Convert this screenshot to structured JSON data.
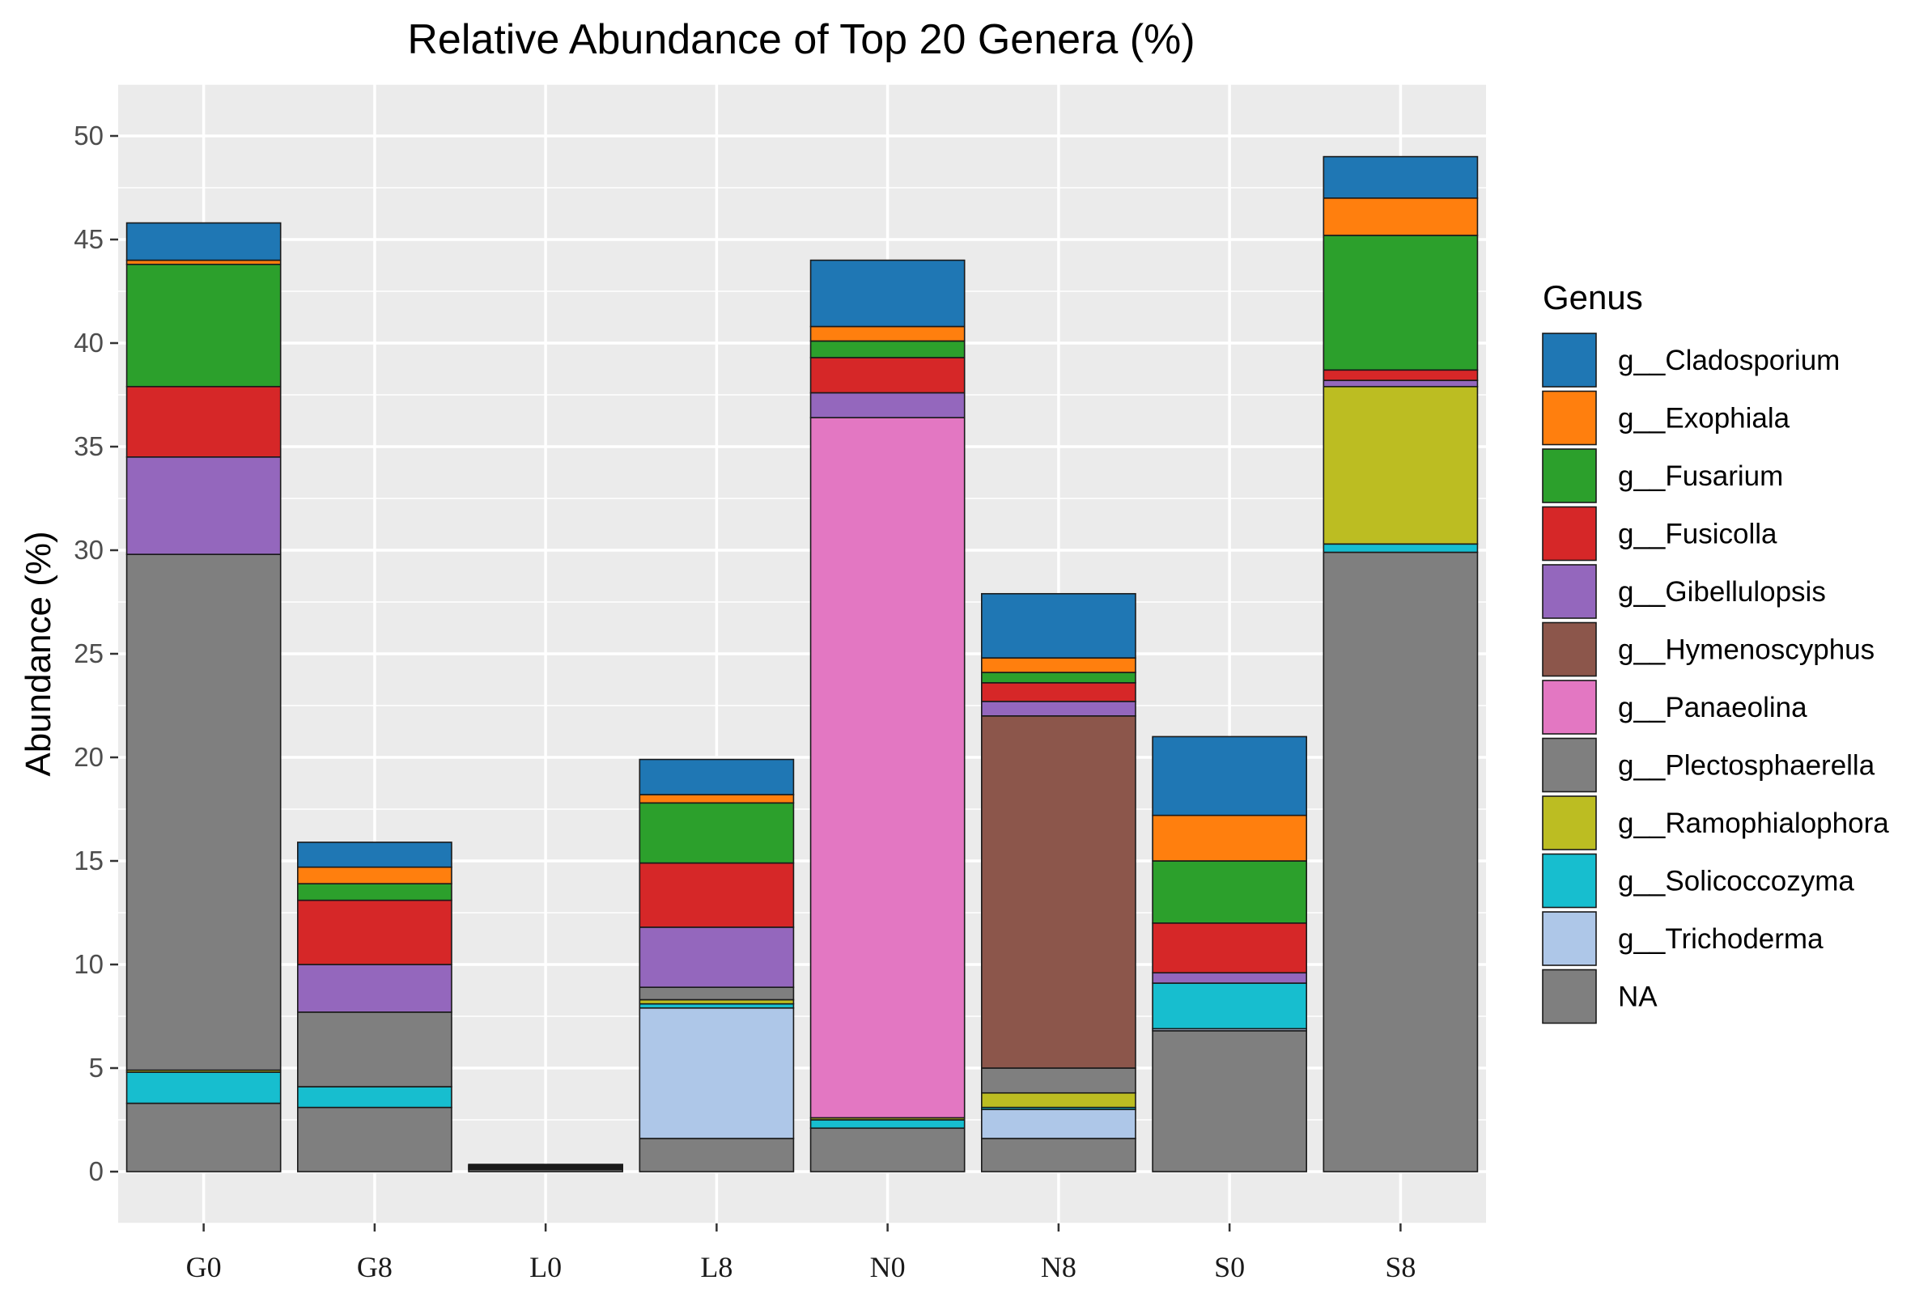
{
  "chart_data": {
    "type": "bar",
    "stacked": true,
    "title": "Relative Abundance of Top 20 Genera (%)",
    "xlabel": "",
    "ylabel": "Abundance (%)",
    "ylim": [
      -2.5,
      52.5
    ],
    "yticks": [
      "0",
      "5",
      "10",
      "15",
      "20",
      "25",
      "30",
      "35",
      "40",
      "45",
      "50"
    ],
    "categories": [
      "G0",
      "G8",
      "L0",
      "L8",
      "N0",
      "N8",
      "S0",
      "S8"
    ],
    "legend_title": "Genus",
    "legend_position": "right",
    "series": [
      {
        "name": "NA",
        "color": "#7F7F7F",
        "values": [
          3.3,
          3.1,
          0.1,
          1.6,
          2.1,
          1.6,
          6.8,
          29.9
        ]
      },
      {
        "name": "g__Trichoderma",
        "color": "#AEC7E8",
        "values": [
          0.0,
          0.0,
          0.0,
          6.3,
          0.0,
          1.4,
          0.1,
          0.0
        ]
      },
      {
        "name": "g__Solicoccozyma",
        "color": "#17BECF",
        "values": [
          1.5,
          1.0,
          0.05,
          0.2,
          0.4,
          0.1,
          2.2,
          0.4
        ]
      },
      {
        "name": "g__Ramophialophora",
        "color": "#BCBD22",
        "values": [
          0.1,
          0.0,
          0.0,
          0.2,
          0.1,
          0.7,
          0.0,
          7.6
        ]
      },
      {
        "name": "g__Plectosphaerella",
        "color": "#7F7F7F",
        "values": [
          24.9,
          3.6,
          0.05,
          0.6,
          0.0,
          1.2,
          0.0,
          0.0
        ]
      },
      {
        "name": "g__Panaeolina",
        "color": "#E377C2",
        "values": [
          0.0,
          0.0,
          0.0,
          0.0,
          33.8,
          0.0,
          0.0,
          0.0
        ]
      },
      {
        "name": "g__Hymenoscyphus",
        "color": "#8C564B",
        "values": [
          0.0,
          0.0,
          0.05,
          0.0,
          0.0,
          17.0,
          0.0,
          0.0
        ]
      },
      {
        "name": "g__Gibellulopsis",
        "color": "#9467BD",
        "values": [
          4.7,
          2.3,
          0.05,
          2.9,
          1.2,
          0.7,
          0.5,
          0.3
        ]
      },
      {
        "name": "g__Fusicolla",
        "color": "#D62728",
        "values": [
          3.4,
          3.1,
          0.0,
          3.1,
          1.7,
          0.9,
          2.4,
          0.5
        ]
      },
      {
        "name": "g__Fusarium",
        "color": "#2CA02C",
        "values": [
          5.9,
          0.8,
          0.0,
          2.9,
          0.8,
          0.5,
          3.0,
          6.5
        ]
      },
      {
        "name": "g__Exophiala",
        "color": "#FF7F0E",
        "values": [
          0.2,
          0.8,
          0.0,
          0.4,
          0.7,
          0.7,
          2.2,
          1.8
        ]
      },
      {
        "name": "g__Cladosporium",
        "color": "#1F77B4",
        "values": [
          1.8,
          1.2,
          0.05,
          1.7,
          3.2,
          3.1,
          3.8,
          2.0
        ]
      }
    ],
    "legend": [
      {
        "label": "g__Cladosporium",
        "color": "#1F77B4"
      },
      {
        "label": "g__Exophiala",
        "color": "#FF7F0E"
      },
      {
        "label": "g__Fusarium",
        "color": "#2CA02C"
      },
      {
        "label": "g__Fusicolla",
        "color": "#D62728"
      },
      {
        "label": "g__Gibellulopsis",
        "color": "#9467BD"
      },
      {
        "label": "g__Hymenoscyphus",
        "color": "#8C564B"
      },
      {
        "label": "g__Panaeolina",
        "color": "#E377C2"
      },
      {
        "label": "g__Plectosphaerella",
        "color": "#7F7F7F"
      },
      {
        "label": "g__Ramophialophora",
        "color": "#BCBD22"
      },
      {
        "label": "g__Solicoccozyma",
        "color": "#17BECF"
      },
      {
        "label": "g__Trichoderma",
        "color": "#AEC7E8"
      },
      {
        "label": "NA",
        "color": "#7F7F7F"
      }
    ],
    "colors": {
      "panel_background": "#EBEBEB",
      "gridline": "#FFFFFF",
      "bar_outline": "#1A1A1A",
      "tick_mark": "#333333"
    }
  }
}
